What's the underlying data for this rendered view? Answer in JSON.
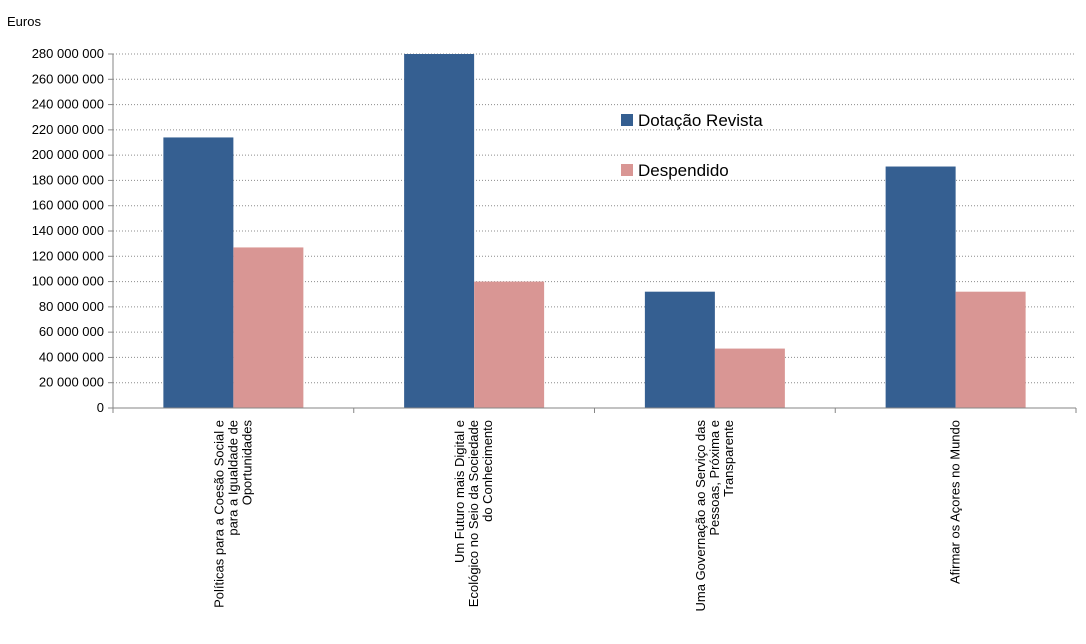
{
  "chart_data": {
    "type": "bar",
    "ylabel": "Euros",
    "ylim": [
      0,
      280000000
    ],
    "ytick_step": 20000000,
    "yticks": [
      "0",
      "20 000 000",
      "40 000 000",
      "60 000 000",
      "80 000 000",
      "100 000 000",
      "120 000 000",
      "140 000 000",
      "160 000 000",
      "180 000 000",
      "200 000 000",
      "220 000 000",
      "240 000 000",
      "260 000 000",
      "280 000 000"
    ],
    "grid": true,
    "legend_position": "top-right",
    "categories": [
      [
        "Políticas para a Coesão Social e",
        "para a Igualdade de",
        "Oportunidades"
      ],
      [
        "Um Futuro mais Digital e",
        "Ecológico no Seio da Sociedade",
        "do Conhecimento"
      ],
      [
        "Uma Governação ao Serviço das",
        "Pessoas, Próxima e",
        "Transparente"
      ],
      [
        "Afirmar os Açores no Mundo"
      ]
    ],
    "series": [
      {
        "name": "Dotação Revista",
        "color": "#355F91",
        "values": [
          214000000,
          281000000,
          92000000,
          191000000
        ]
      },
      {
        "name": "Despendido",
        "color": "#D99694",
        "values": [
          127000000,
          100000000,
          47000000,
          92000000
        ]
      }
    ]
  }
}
